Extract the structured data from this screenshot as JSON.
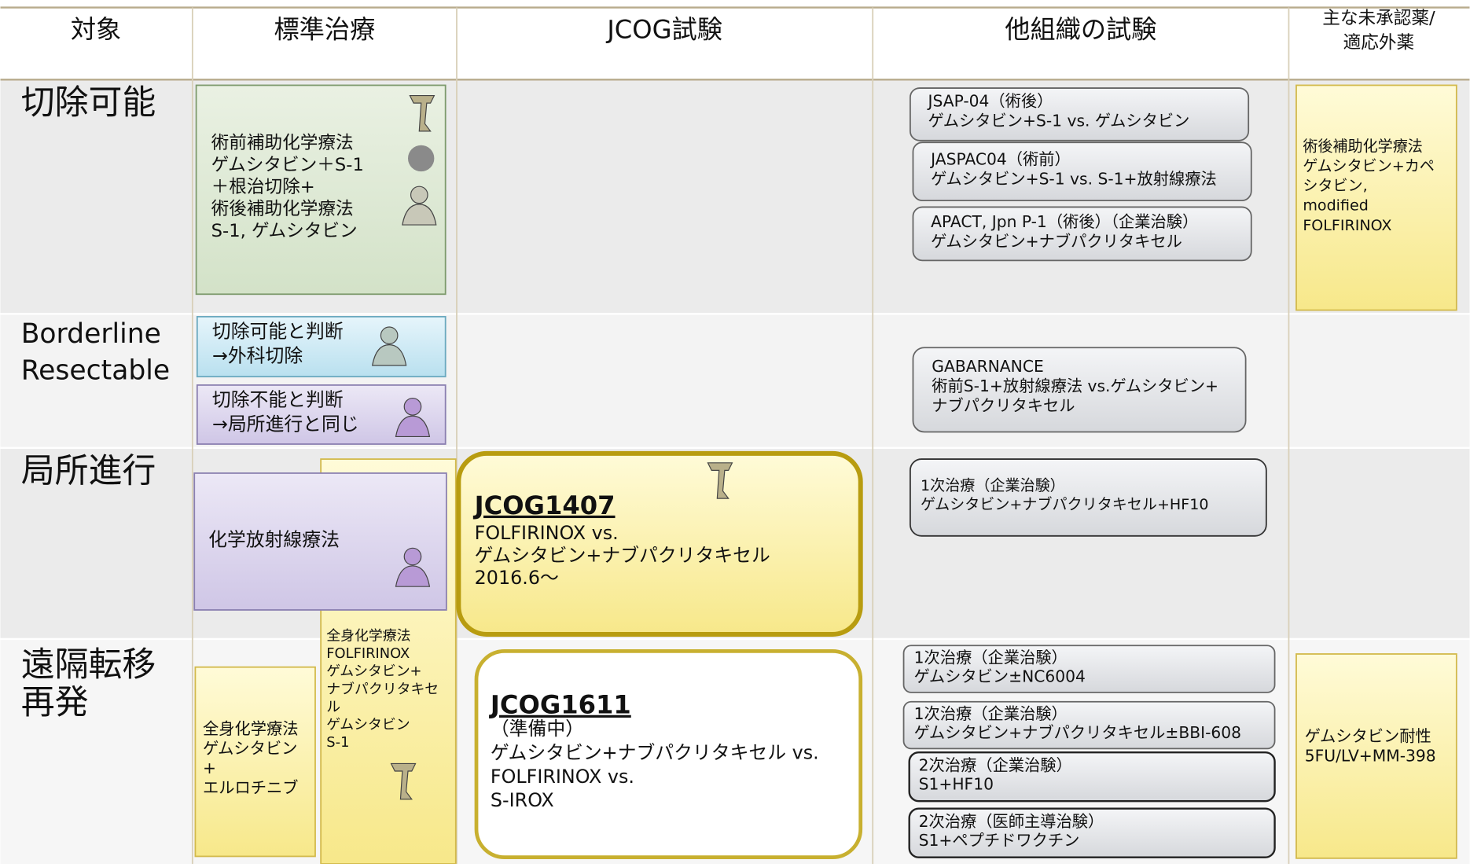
{
  "header": {
    "columns": [
      [
        "対象"
      ],
      [
        "標準治療"
      ],
      [
        "JCOG試験"
      ],
      [
        "他組織の試験"
      ],
      [
        "主な未承認薬/",
        "適応外薬"
      ]
    ]
  },
  "rows": [
    {
      "label": [
        "切除可能"
      ]
    },
    {
      "label": [
        "Borderline",
        "Resectable"
      ]
    },
    {
      "label": [
        "局所進行"
      ]
    },
    {
      "label": [
        "遠隔転移",
        "再発"
      ]
    }
  ],
  "boxes": [
    {
      "lines": [
        "術前補助化学療法",
        "ゲムシタビン＋S-1",
        "＋根治切除+",
        "術後補助化学療法",
        "S-1, ゲムシタビン"
      ]
    },
    {
      "lines": [
        "JSAP-04（術後）",
        "ゲムシタビン+S-1 vs. ゲムシタビン"
      ]
    },
    {
      "lines": [
        "JASPAC04（術前）",
        "ゲムシタビン+S-1 vs. S-1+放射線療法"
      ]
    },
    {
      "lines": [
        "APACT, Jpn P-1（術後）（企業治験）",
        "ゲムシタビン+ナブパクリタキセル"
      ]
    },
    {
      "lines": [
        "術後補助化学療法",
        "ゲムシタビン+カペ",
        "シタビン,",
        "modified",
        "FOLFIRINOX"
      ]
    },
    {
      "lines": [
        "切除可能と判断",
        "→外科切除"
      ]
    },
    {
      "lines": [
        "切除不能と判断",
        "→局所進行と同じ"
      ]
    },
    {
      "lines": [
        "GABARNANCE",
        "術前S-1+放射線療法 vs.ゲムシタビン+",
        "ナブパクリタキセル"
      ]
    },
    {
      "lines": [
        "全身化学療法",
        "FOLFIRINOX",
        "ゲムシタビン+",
        "ナブパクリタキセ",
        "ル",
        "ゲムシタビン",
        "S-1"
      ]
    },
    {
      "lines": [
        "化学放射線療法"
      ]
    },
    {
      "title": "JCOG1407",
      "lines": [
        "FOLFIRINOX vs.",
        "ゲムシタビン+ナブパクリタキセル",
        "2016.6～"
      ]
    },
    {
      "lines": [
        "1次治療（企業治験）",
        "ゲムシタビン+ナブパクリタキセル+HF10"
      ]
    },
    {
      "lines": [
        "全身化学療法",
        "ゲムシタビン",
        "+",
        "エルロチニブ"
      ]
    },
    {
      "title": "JCOG1611",
      "lines": [
        "（準備中）",
        "ゲムシタビン+ナブパクリタキセル vs.",
        "FOLFIRINOX vs.",
        "S-IROX"
      ]
    },
    {
      "lines": [
        "1次治療（企業治験）",
        "ゲムシタビン±NC6004"
      ]
    },
    {
      "lines": [
        "1次治療（企業治験）",
        "ゲムシタビン+ナブパクリタキセル±BBI-608"
      ]
    },
    {
      "lines": [
        "2次治療（企業治験）",
        "S1+HF10"
      ]
    },
    {
      "lines": [
        "2次治療（医師主導治験）",
        "S1+ペプチドワクチン"
      ]
    },
    {
      "lines": [
        "ゲムシタビン耐性",
        "5FU/LV+MM-398"
      ]
    }
  ]
}
